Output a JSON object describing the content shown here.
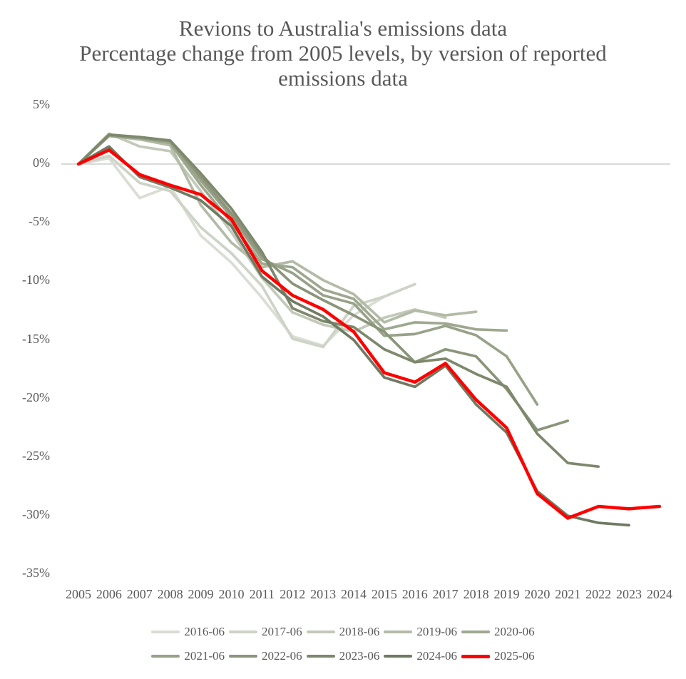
{
  "title_lines": [
    "Revions to Australia's emissions data",
    "Percentage change from 2005 levels, by version of reported",
    "emissions data"
  ],
  "text_color": "#595959",
  "grid_color": "#d9d9d9",
  "chart_data": {
    "type": "line",
    "x": [
      2005,
      2006,
      2007,
      2008,
      2009,
      2010,
      2011,
      2012,
      2013,
      2014,
      2015,
      2016,
      2017,
      2018,
      2019,
      2020,
      2021,
      2022,
      2023,
      2024
    ],
    "x_tick_labels": [
      "2005",
      "2006",
      "2007",
      "2008",
      "2009",
      "2010",
      "2011",
      "2012",
      "2013",
      "2014",
      "2015",
      "2016",
      "2017",
      "2018",
      "2019",
      "2020",
      "2021",
      "2022",
      "2023",
      "2024"
    ],
    "y_ticks": [
      {
        "label": "5%",
        "value": 5
      },
      {
        "label": "0%",
        "value": 0
      },
      {
        "label": "-5%",
        "value": -5
      },
      {
        "label": "-10%",
        "value": -10
      },
      {
        "label": "-15%",
        "value": -15
      },
      {
        "label": "-20%",
        "value": -20
      },
      {
        "label": "-25%",
        "value": -25
      },
      {
        "label": "-30%",
        "value": -30
      },
      {
        "label": "-35%",
        "value": -35
      }
    ],
    "ylim": [
      -35,
      5
    ],
    "gridline_value": 0,
    "legend_position": "bottom",
    "series": [
      {
        "name": "2016-06",
        "color": "#d9ddd3",
        "values": [
          0,
          0.5,
          -2.9,
          -1.9,
          -6.1,
          -8.4,
          -11.4,
          -14.7,
          -15.5,
          -12.9,
          -11.3
        ]
      },
      {
        "name": "2017-06",
        "color": "#cdd3c6",
        "values": [
          0,
          0.7,
          -1.6,
          -2.3,
          -5.4,
          -7.6,
          -10.4,
          -14.9,
          -15.6,
          -12.1,
          -11.3,
          -10.25
        ]
      },
      {
        "name": "2018-06",
        "color": "#c2c9b9",
        "values": [
          0,
          2.6,
          1.5,
          1.1,
          -2.3,
          -5.8,
          -9.7,
          -12.65,
          -13.7,
          -14.3,
          -13.1,
          -12.4,
          -13.1
        ]
      },
      {
        "name": "2019-06",
        "color": "#b2bba7",
        "values": [
          0,
          2.4,
          2.1,
          1.6,
          -3.5,
          -6.7,
          -8.8,
          -8.3,
          -9.9,
          -11.1,
          -13.5,
          -12.5,
          -12.9,
          -12.6
        ]
      },
      {
        "name": "2020-06",
        "color": "#9da88f",
        "values": [
          0,
          2.4,
          2.2,
          1.8,
          -1.8,
          -5.0,
          -8.5,
          -8.8,
          -10.7,
          -11.5,
          -14.1,
          -13.5,
          -13.6,
          -14.1,
          -14.2
        ]
      },
      {
        "name": "2021-06",
        "color": "#97a289",
        "values": [
          0,
          2.4,
          2.2,
          1.9,
          -1.4,
          -4.5,
          -8.1,
          -9.3,
          -11.2,
          -11.9,
          -14.65,
          -14.5,
          -13.8,
          -14.6,
          -16.4,
          -20.5
        ]
      },
      {
        "name": "2022-06",
        "color": "#8a9579",
        "values": [
          0,
          2.5,
          2.3,
          2.0,
          -1.1,
          -4.2,
          -7.8,
          -10.2,
          -11.6,
          -12.9,
          -14.3,
          -16.9,
          -15.8,
          -16.4,
          -19.2,
          -22.7,
          -21.9
        ]
      },
      {
        "name": "2023-06",
        "color": "#7d886c",
        "values": [
          0,
          2.5,
          2.3,
          2.0,
          -0.8,
          -3.8,
          -7.5,
          -12.3,
          -13.4,
          -13.9,
          -15.8,
          -16.9,
          -16.6,
          -17.9,
          -19.0,
          -23.0,
          -25.5,
          -25.8
        ]
      },
      {
        "name": "2024-06",
        "color": "#6f7a62",
        "values": [
          0,
          1.5,
          -1.1,
          -2.0,
          -3.1,
          -5.3,
          -9.6,
          -11.7,
          -13.0,
          -15.0,
          -18.2,
          -19.0,
          -17.2,
          -20.5,
          -22.9,
          -27.9,
          -30.0,
          -30.6,
          -30.8
        ]
      },
      {
        "name": "2025-06",
        "color": "#ff0000",
        "values": [
          0,
          1.2,
          -0.9,
          -1.8,
          -2.6,
          -4.7,
          -9.1,
          -11.2,
          -12.4,
          -14.3,
          -17.8,
          -18.6,
          -17.0,
          -20.1,
          -22.5,
          -28.1,
          -30.2,
          -29.2,
          -29.4,
          -29.2
        ]
      }
    ]
  }
}
